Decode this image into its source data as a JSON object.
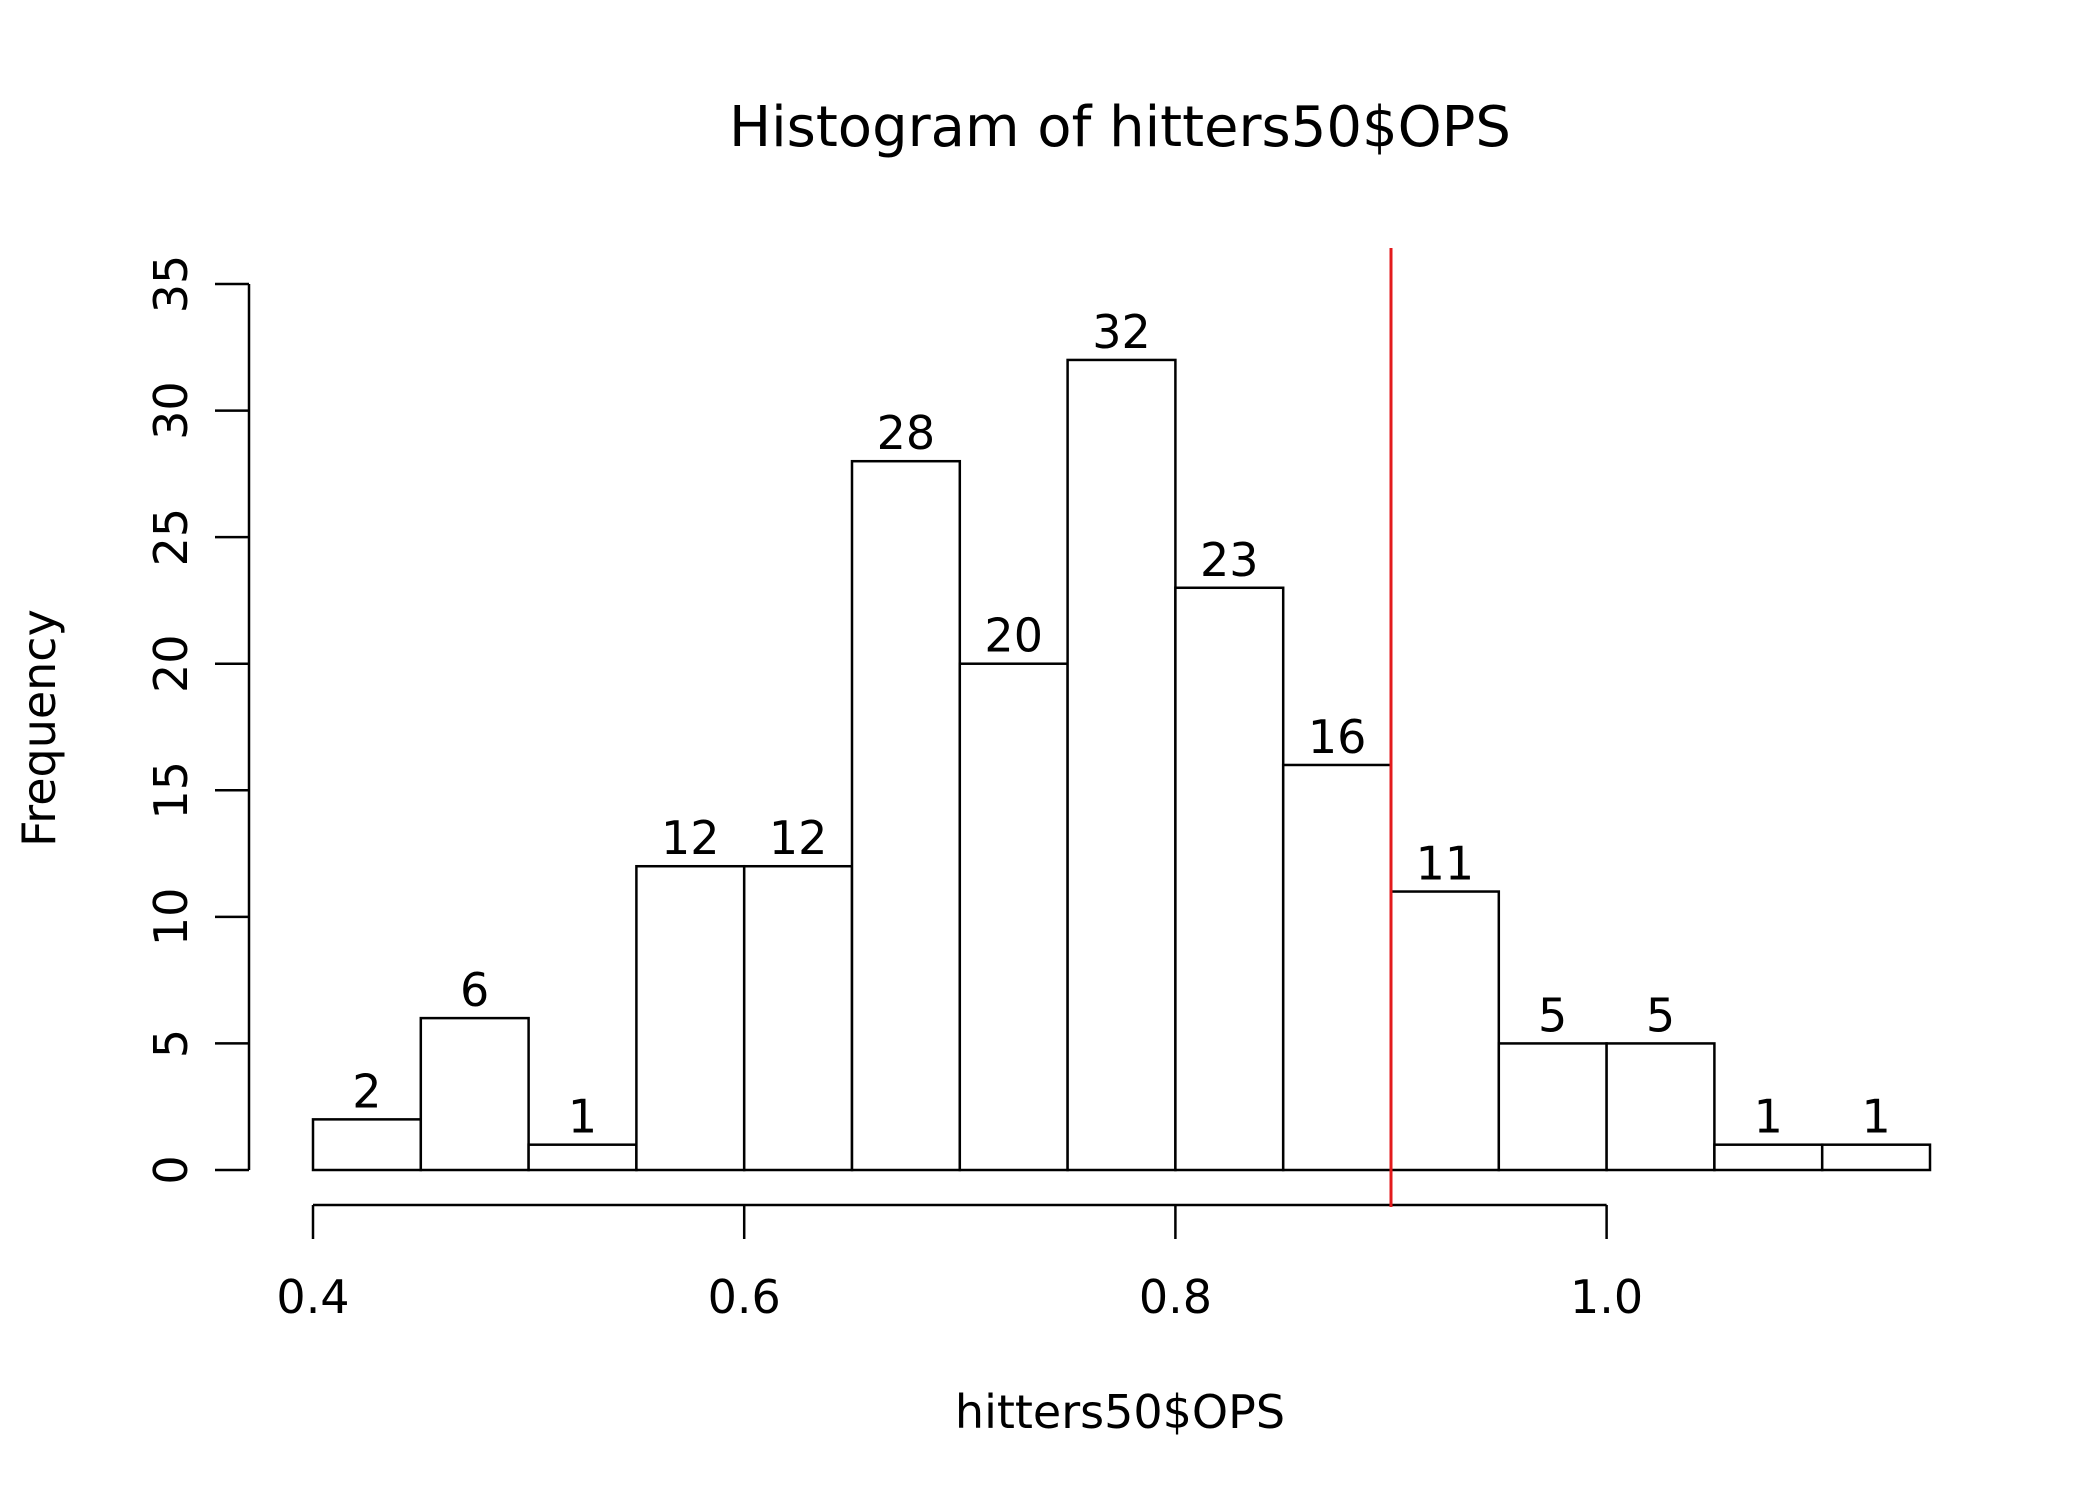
{
  "chart_data": {
    "type": "bar",
    "title": "Histogram of hitters50$OPS",
    "xlabel": "hitters50$OPS",
    "ylabel": "Frequency",
    "bin_edges": [
      0.4,
      0.45,
      0.5,
      0.55,
      0.6,
      0.65,
      0.7,
      0.75,
      0.8,
      0.85,
      0.9,
      0.95,
      1.0,
      1.05,
      1.1,
      1.15
    ],
    "values": [
      2,
      6,
      1,
      12,
      12,
      28,
      20,
      32,
      23,
      16,
      11,
      5,
      5,
      1,
      1
    ],
    "data_labels": [
      "2",
      "6",
      "1",
      "12",
      "12",
      "28",
      "20",
      "32",
      "23",
      "16",
      "11",
      "5",
      "5",
      "1",
      "1"
    ],
    "xlim": [
      0.4,
      1.15
    ],
    "ylim": [
      0,
      35
    ],
    "x_ticks": [
      0.4,
      0.6,
      0.8,
      1.0
    ],
    "x_tick_labels": [
      "0.4",
      "0.6",
      "0.8",
      "1.0"
    ],
    "y_ticks": [
      0,
      5,
      10,
      15,
      20,
      25,
      30,
      35
    ],
    "y_tick_labels": [
      "0",
      "5",
      "10",
      "15",
      "20",
      "25",
      "30",
      "35"
    ],
    "reference_line": {
      "x": 0.9,
      "color": "#e31a1c"
    },
    "bar_fill": "#ffffff",
    "bar_stroke": "#000000",
    "grid": false,
    "legend": "none"
  }
}
